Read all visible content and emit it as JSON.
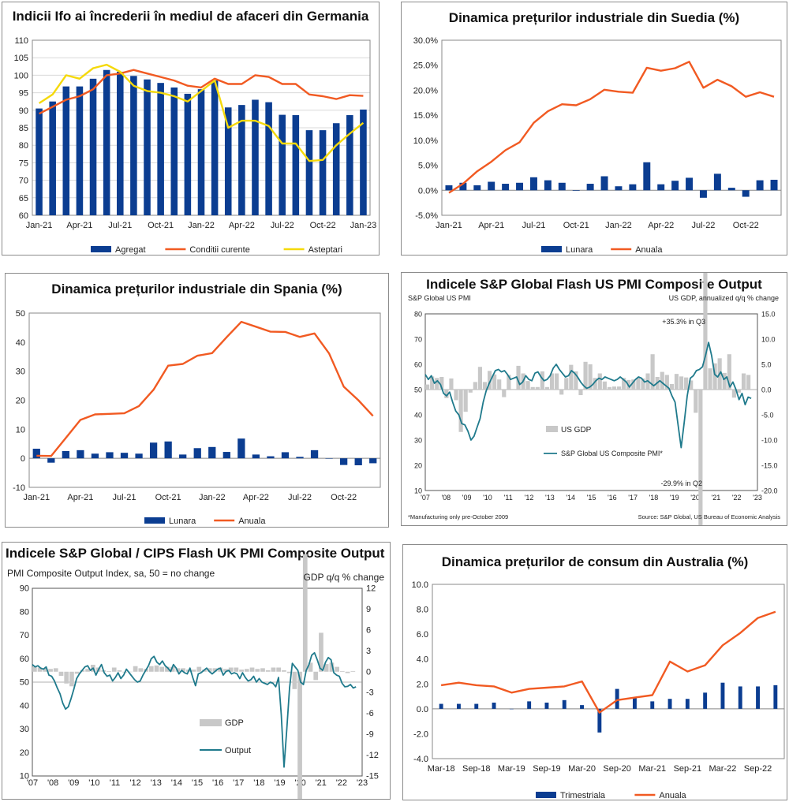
{
  "colors": {
    "navy": "#0b3d91",
    "orange": "#f15a22",
    "yellow": "#f5d90a",
    "gray": "#c8c8c8",
    "teal": "#1f7a8c"
  },
  "chart_data": [
    {
      "id": "c1",
      "type": "bar",
      "title": "Indicii Ifo ai încrederii în mediul de afaceri din Germania",
      "ylim": [
        60,
        110
      ],
      "yticks": [
        60,
        65,
        70,
        75,
        80,
        85,
        90,
        95,
        100,
        105,
        110
      ],
      "categories": [
        "Jan-21",
        "Feb-21",
        "Mar-21",
        "Apr-21",
        "May-21",
        "Jun-21",
        "Jul-21",
        "Aug-21",
        "Sep-21",
        "Oct-21",
        "Nov-21",
        "Dec-21",
        "Jan-22",
        "Feb-22",
        "Mar-22",
        "Apr-22",
        "May-22",
        "Jun-22",
        "Jul-22",
        "Aug-22",
        "Sep-22",
        "Oct-22",
        "Nov-22",
        "Dec-22",
        "Jan-23"
      ],
      "xtick_labels": [
        "Jan-21",
        "Apr-21",
        "Jul-21",
        "Oct-21",
        "Jan-22",
        "Apr-22",
        "Jul-22",
        "Oct-22",
        "Jan-23"
      ],
      "series": [
        {
          "name": "Agregat",
          "kind": "bar",
          "values": [
            90.5,
            92.5,
            96.8,
            96.8,
            99.0,
            101.5,
            101.0,
            99.8,
            98.8,
            97.8,
            96.5,
            94.7,
            96.0,
            98.5,
            90.8,
            91.5,
            93.0,
            92.3,
            88.7,
            88.6,
            84.3,
            84.3,
            86.3,
            88.6,
            90.2
          ]
        },
        {
          "name": "Conditii curente",
          "kind": "line",
          "values": [
            89.0,
            91.0,
            93.0,
            94.0,
            96.0,
            100.0,
            100.5,
            101.5,
            100.5,
            99.5,
            98.5,
            97.0,
            96.5,
            99.0,
            97.5,
            97.5,
            100.0,
            99.5,
            97.5,
            97.5,
            94.5,
            94.0,
            93.2,
            94.3,
            94.1
          ]
        },
        {
          "name": "Asteptari",
          "kind": "line",
          "values": [
            92.0,
            94.5,
            100.0,
            99.0,
            102.0,
            103.0,
            101.0,
            97.0,
            95.5,
            95.0,
            94.0,
            92.5,
            95.5,
            98.5,
            85.0,
            87.0,
            87.0,
            85.5,
            80.5,
            80.5,
            75.5,
            75.8,
            80.0,
            83.3,
            86.4
          ]
        }
      ]
    },
    {
      "id": "c2",
      "type": "bar",
      "title": "Dinamica prețurilor industriale din Suedia (%)",
      "ylim": [
        -5,
        30
      ],
      "yticks": [
        "-5.0%",
        "0.0%",
        "5.0%",
        "10.0%",
        "15.0%",
        "20.0%",
        "25.0%",
        "30.0%"
      ],
      "categories": [
        "Jan-21",
        "Feb-21",
        "Mar-21",
        "Apr-21",
        "May-21",
        "Jun-21",
        "Jul-21",
        "Aug-21",
        "Sep-21",
        "Oct-21",
        "Nov-21",
        "Dec-21",
        "Jan-22",
        "Feb-22",
        "Mar-22",
        "Apr-22",
        "May-22",
        "Jun-22",
        "Jul-22",
        "Aug-22",
        "Sep-22",
        "Oct-22",
        "Nov-22",
        "Dec-22"
      ],
      "xtick_labels": [
        "Jan-21",
        "Apr-21",
        "Jul-21",
        "Oct-21",
        "Jan-22",
        "Apr-22",
        "Jul-22",
        "Oct-22"
      ],
      "series": [
        {
          "name": "Lunara",
          "kind": "bar",
          "values": [
            1.0,
            1.5,
            1.0,
            1.7,
            1.3,
            1.5,
            2.6,
            2.0,
            1.5,
            -0.1,
            1.3,
            2.8,
            0.8,
            1.2,
            5.6,
            1.2,
            1.9,
            2.5,
            -1.5,
            3.3,
            0.5,
            -1.3,
            2.0,
            2.1
          ]
        },
        {
          "name": "Anuala",
          "kind": "line",
          "values": [
            -0.5,
            1.3,
            3.8,
            5.7,
            8.0,
            9.6,
            13.5,
            15.8,
            17.2,
            17.0,
            18.2,
            20.1,
            19.7,
            19.5,
            24.5,
            23.9,
            24.4,
            25.7,
            20.5,
            22.1,
            20.8,
            18.7,
            19.6,
            18.7
          ]
        }
      ]
    },
    {
      "id": "c3",
      "type": "bar",
      "title": "Dinamica prețurilor industriale din Spania (%)",
      "ylim": [
        -10,
        50
      ],
      "yticks": [
        "-10",
        "0",
        "10",
        "20",
        "30",
        "40",
        "50"
      ],
      "categories": [
        "Jan-21",
        "Feb-21",
        "Mar-21",
        "Apr-21",
        "May-21",
        "Jun-21",
        "Jul-21",
        "Aug-21",
        "Sep-21",
        "Oct-21",
        "Nov-21",
        "Dec-21",
        "Jan-22",
        "Feb-22",
        "Mar-22",
        "Apr-22",
        "May-22",
        "Jun-22",
        "Jul-22",
        "Aug-22",
        "Sep-22",
        "Oct-22",
        "Nov-22",
        "Dec-22"
      ],
      "xtick_labels": [
        "Jan-21",
        "Apr-21",
        "Jul-21",
        "Oct-21",
        "Jan-22",
        "Apr-22",
        "Jul-22",
        "Oct-22"
      ],
      "series": [
        {
          "name": "Lunara",
          "kind": "bar",
          "values": [
            3.3,
            -1.5,
            2.5,
            2.8,
            1.6,
            2.1,
            1.9,
            1.6,
            5.4,
            5.8,
            1.3,
            3.5,
            3.9,
            2.2,
            6.8,
            1.3,
            0.7,
            2.1,
            0.5,
            2.8,
            0.0,
            -2.3,
            -2.4,
            -1.7
          ]
        },
        {
          "name": "Anuala",
          "kind": "line",
          "values": [
            0.9,
            0.8,
            7.0,
            13.2,
            15.1,
            15.3,
            15.5,
            18.0,
            23.6,
            31.9,
            32.5,
            35.3,
            36.2,
            41.7,
            47.0,
            45.3,
            43.6,
            43.5,
            41.8,
            43.0,
            36.1,
            24.7,
            20.0,
            14.6
          ]
        }
      ]
    },
    {
      "id": "c6",
      "type": "bar",
      "title": "Dinamica prețurilor de consum din Australia (%)",
      "ylim": [
        -4,
        10
      ],
      "yticks": [
        "-4.0",
        "-2.0",
        "0.0",
        "2.0",
        "4.0",
        "6.0",
        "8.0",
        "10.0"
      ],
      "categories": [
        "Mar-18",
        "Jun-18",
        "Sep-18",
        "Dec-18",
        "Mar-19",
        "Jun-19",
        "Sep-19",
        "Dec-19",
        "Mar-20",
        "Jun-20",
        "Sep-20",
        "Dec-20",
        "Mar-21",
        "Jun-21",
        "Sep-21",
        "Dec-21",
        "Mar-22",
        "Jun-22",
        "Sep-22",
        "Dec-22"
      ],
      "xtick_labels": [
        "Mar-18",
        "Sep-18",
        "Mar-19",
        "Sep-19",
        "Mar-20",
        "Sep-20",
        "Mar-21",
        "Sep-21",
        "Mar-22",
        "Sep-22"
      ],
      "series": [
        {
          "name": "Trimestriala",
          "kind": "bar",
          "values": [
            0.4,
            0.4,
            0.4,
            0.5,
            0.0,
            0.6,
            0.5,
            0.7,
            0.3,
            -1.9,
            1.6,
            0.9,
            0.6,
            0.8,
            0.8,
            1.3,
            2.1,
            1.8,
            1.8,
            1.9
          ]
        },
        {
          "name": "Anuala",
          "kind": "line",
          "values": [
            1.9,
            2.1,
            1.9,
            1.8,
            1.3,
            1.6,
            1.7,
            1.8,
            2.2,
            -0.3,
            0.7,
            0.9,
            1.1,
            3.8,
            3.0,
            3.5,
            5.1,
            6.1,
            7.3,
            7.8
          ]
        }
      ]
    }
  ],
  "us_pmi": {
    "title": "Indicele S&P Global Flash US PMI Composite Output",
    "left_axis_title": "S&P Global US PMI",
    "right_axis_title": "US GDP, annualized q/q % change",
    "left_ticks": [
      "10",
      "20",
      "30",
      "40",
      "50",
      "60",
      "70",
      "80"
    ],
    "right_ticks": [
      "-20.0",
      "-15.0",
      "-10.0",
      "-5.0",
      "0.0",
      "5.0",
      "10.0",
      "15.0"
    ],
    "x_ticks": [
      "'07",
      "'08",
      "'09",
      "'10",
      "'11",
      "'12",
      "'13",
      "'14",
      "'15",
      "'16",
      "'17",
      "'18",
      "'19",
      "'20",
      "'21",
      "'22",
      "'23"
    ],
    "annotation_high": "+35.3% in Q3",
    "annotation_low": "-29.9% in Q2",
    "legend_gdp": "US GDP",
    "legend_pmi": "S&P Global US Composite PMI*",
    "footnote": "*Manufacturing only pre-October 2009",
    "source": "Source: S&P Global, US Bureau of Economic Analysis",
    "left_range": [
      10,
      80
    ],
    "right_range": [
      -20,
      15
    ],
    "gdp": [
      1.0,
      2.6,
      2.3,
      2.5,
      -1.7,
      2.2,
      -2.1,
      -8.4,
      -4.4,
      -0.6,
      1.5,
      4.5,
      1.5,
      3.7,
      3.0,
      2.0,
      -1.5,
      2.9,
      -0.1,
      4.7,
      3.2,
      1.7,
      0.5,
      0.5,
      3.6,
      0.5,
      3.2,
      3.2,
      -1.0,
      2.3,
      4.9,
      3.6,
      -1.1,
      5.5,
      5.0,
      2.3,
      3.2,
      1.6,
      0.5,
      0.6,
      0.6,
      2.3,
      1.9,
      2.0,
      2.3,
      2.2,
      3.2,
      7.0,
      2.5,
      3.5,
      2.9,
      1.1,
      3.1,
      2.6,
      2.4,
      1.8,
      -4.6,
      -29.9,
      35.3,
      4.2,
      5.2,
      6.2,
      3.3,
      7.0,
      -1.6,
      -0.6,
      3.2,
      2.9
    ],
    "pmi": [
      56.0,
      54.0,
      55.5,
      52.5,
      53.5,
      52.0,
      48.5,
      47.5,
      49.0,
      45.0,
      41.5,
      40.0,
      36.5,
      36.0,
      33.5,
      30.0,
      31.5,
      35.0,
      38.5,
      45.0,
      49.5,
      52.5,
      55.0,
      57.5,
      58.0,
      57.0,
      57.5,
      56.0,
      54.0,
      54.5,
      55.0,
      52.0,
      53.0,
      55.5,
      54.0,
      53.5,
      56.5,
      57.0,
      55.0,
      53.5,
      54.0,
      55.5,
      58.5,
      60.0,
      58.0,
      56.5,
      55.0,
      55.5,
      57.5,
      56.5,
      55.0,
      53.0,
      51.5,
      50.5,
      51.0,
      52.0,
      53.5,
      54.5,
      54.0,
      55.0,
      54.5,
      54.0,
      53.5,
      54.0,
      55.0,
      54.0,
      53.0,
      51.0,
      52.5,
      54.0,
      55.0,
      54.5,
      53.0,
      53.5,
      52.5,
      51.5,
      52.5,
      53.5,
      52.5,
      51.5,
      50.5,
      47.5,
      45.0,
      36.0,
      27.0,
      37.0,
      47.5,
      54.5,
      55.5,
      57.5,
      58.0,
      59.0,
      63.5,
      68.7,
      63.5,
      56.0,
      55.0,
      57.0,
      54.0,
      55.0,
      51.0,
      53.0,
      50.0,
      46.0,
      48.5,
      44.0,
      47.0,
      46.5
    ]
  },
  "uk_pmi": {
    "title": "Indicele S&P Global / CIPS Flash UK PMI Composite Output",
    "subtitle": "PMI Composite Output Index, sa, 50 = no change",
    "right_axis_title": "GDP q/q % change",
    "left_ticks": [
      "10",
      "20",
      "30",
      "40",
      "50",
      "60",
      "70",
      "80",
      "90"
    ],
    "right_ticks": [
      "-15",
      "-12",
      "-9",
      "-6",
      "-3",
      "0",
      "3",
      "6",
      "9",
      "12"
    ],
    "x_ticks": [
      "'07",
      "'08",
      "'09",
      "'10",
      "'11",
      "'12",
      "'13",
      "'14",
      "'15",
      "'16",
      "'17",
      "'18",
      "'19",
      "'20",
      "'21",
      "'22",
      "'23"
    ],
    "legend_gdp": "GDP",
    "legend_output": "Output",
    "left_range": [
      10,
      90
    ],
    "right_range": [
      -15,
      12
    ],
    "gdp": [
      0.7,
      0.6,
      0.5,
      0.4,
      0.5,
      -0.6,
      -1.7,
      -2.1,
      -0.3,
      0.2,
      0.4,
      1.0,
      0.6,
      0.2,
      0.1,
      0.6,
      0.2,
      -0.1,
      0.0,
      0.8,
      0.5,
      0.4,
      0.8,
      0.9,
      0.7,
      0.7,
      0.7,
      0.5,
      0.5,
      0.3,
      0.3,
      0.7,
      0.3,
      0.5,
      0.5,
      0.6,
      0.4,
      0.6,
      0.6,
      0.3,
      0.4,
      0.6,
      0.4,
      0.5,
      0.2,
      0.6,
      0.6,
      0.2,
      -0.2,
      -2.5,
      -21.0,
      16.9,
      1.3,
      -1.2,
      5.6,
      1.1,
      1.3,
      0.7,
      0.1,
      -0.2,
      0.1
    ],
    "output": [
      57.5,
      56.5,
      57.0,
      56.0,
      55.5,
      56.5,
      53.0,
      52.5,
      50.5,
      47.5,
      45.0,
      41.0,
      38.5,
      39.5,
      43.0,
      47.0,
      51.5,
      53.5,
      55.0,
      56.5,
      57.0,
      55.0,
      56.0,
      53.0,
      55.5,
      57.5,
      54.0,
      52.5,
      53.0,
      50.5,
      52.0,
      54.0,
      51.5,
      53.0,
      55.5,
      54.0,
      52.5,
      51.0,
      50.0,
      50.5,
      53.0,
      55.0,
      57.0,
      60.0,
      61.0,
      58.5,
      57.5,
      59.0,
      57.0,
      56.0,
      54.5,
      57.5,
      56.0,
      53.5,
      55.0,
      54.0,
      53.5,
      56.0,
      52.0,
      48.5,
      53.5,
      54.0,
      55.0,
      56.0,
      54.5,
      53.5,
      54.5,
      55.5,
      56.0,
      53.0,
      54.5,
      55.0,
      53.5,
      54.0,
      53.5,
      51.5,
      54.0,
      52.0,
      50.5,
      51.0,
      52.5,
      50.0,
      51.5,
      50.0,
      49.5,
      49.0,
      50.0,
      49.5,
      48.0,
      52.0,
      36.0,
      13.8,
      30.0,
      47.5,
      58.0,
      56.5,
      55.0,
      50.0,
      49.0,
      55.0,
      57.5,
      61.5,
      62.5,
      59.5,
      56.0,
      55.0,
      58.5,
      60.5,
      59.5,
      54.0,
      53.0,
      52.5,
      49.5,
      48.0,
      48.2,
      49.0,
      47.5,
      48.0
    ]
  }
}
